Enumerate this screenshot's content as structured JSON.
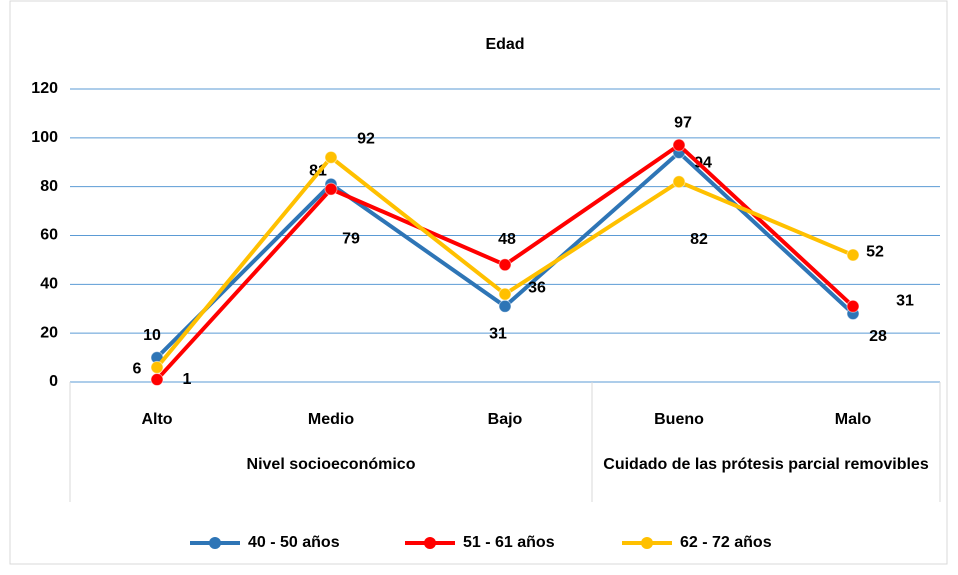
{
  "chart_data": {
    "type": "line",
    "title": "Edad",
    "groups": [
      {
        "name": "Nivel socioeconómico",
        "categories": [
          "Alto",
          "Medio",
          "Bajo"
        ]
      },
      {
        "name": "Cuidado de las prótesis parcial removibles",
        "categories": [
          "Bueno",
          "Malo"
        ]
      }
    ],
    "series": [
      {
        "name": "40 - 50 años",
        "color": "#2e75b6",
        "values": [
          10,
          81,
          31,
          94,
          28
        ]
      },
      {
        "name": "51 - 61 años",
        "color": "#ff0000",
        "values": [
          1,
          79,
          48,
          97,
          31
        ]
      },
      {
        "name": "62 - 72 años",
        "color": "#ffc000",
        "values": [
          6,
          92,
          36,
          82,
          52
        ]
      }
    ],
    "ylim": [
      0,
      120
    ],
    "yticks": [
      0,
      20,
      40,
      60,
      80,
      100,
      120
    ],
    "grid": true,
    "legend": "bottom"
  }
}
